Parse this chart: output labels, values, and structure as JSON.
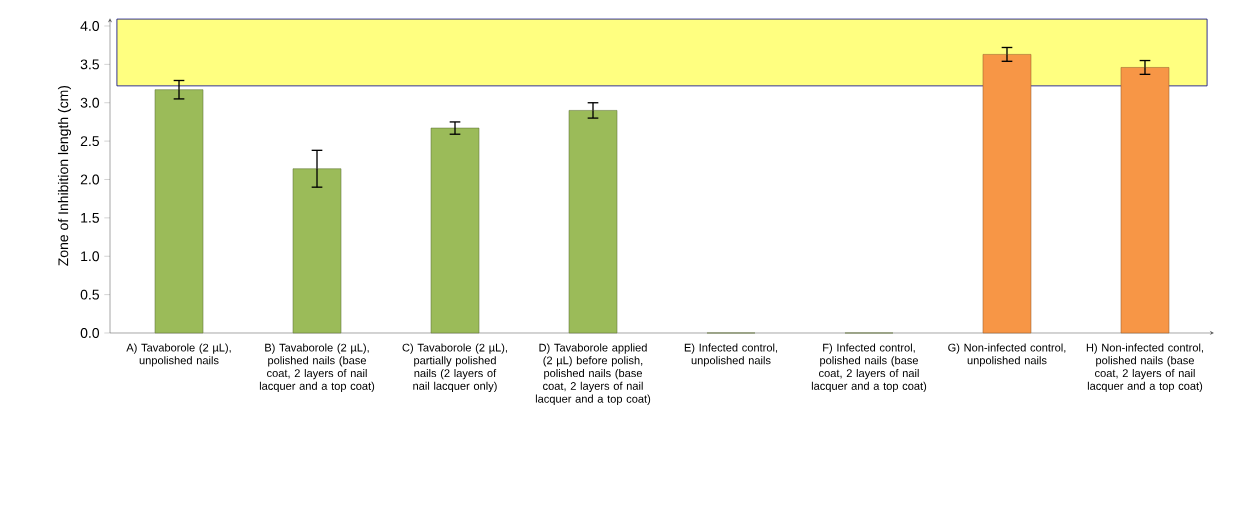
{
  "chart_data": {
    "type": "bar",
    "ylabel": "Zone of Inhibition length (cm)",
    "categories": [
      "A) Tavaborole (2 µL), unpolished nails",
      "B) Tavaborole (2 µL), polished nails (base coat, 2 layers of nail lacquer and a top coat)",
      "C) Tavaborole (2 µL), partially polished nails (2 layers of nail lacquer only)",
      "D) Tavaborole applied (2 µL) before polish, polished nails (base coat, 2 layers of nail lacquer and a top coat)",
      "E) Infected control, unpolished nails",
      "F) Infected control, polished nails (base coat, 2 layers of nail lacquer and a top coat)",
      "G) Non-infected control, unpolished nails",
      "H) Non-infected control, polished nails (base coat, 2 layers of nail lacquer and a top coat)"
    ],
    "values": [
      3.17,
      2.14,
      2.67,
      2.9,
      0,
      0,
      3.63,
      3.46
    ],
    "errors": [
      0.12,
      0.24,
      0.08,
      0.1,
      null,
      null,
      0.09,
      0.09
    ],
    "colors": [
      "#9bbb59",
      "#9bbb59",
      "#9bbb59",
      "#9bbb59",
      "#9bbb59",
      "#9bbb59",
      "#f79646",
      "#f79646"
    ],
    "ylim": [
      0,
      4.1
    ],
    "yticks": [
      {
        "value": 0,
        "label": "0.0"
      },
      {
        "value": 0.5,
        "label": "0.5"
      },
      {
        "value": 1,
        "label": "1.0"
      },
      {
        "value": 1.5,
        "label": "1.5"
      },
      {
        "value": 2,
        "label": "2.0"
      },
      {
        "value": 2.5,
        "label": "2.5"
      },
      {
        "value": 3,
        "label": "3.0"
      },
      {
        "value": 3.5,
        "label": "3.5"
      },
      {
        "value": 4,
        "label": "4.0"
      }
    ],
    "bands": [
      {
        "axis": "y",
        "from": 3.22,
        "to": 4.09,
        "color": "#ffff80"
      }
    ],
    "grid": false
  }
}
